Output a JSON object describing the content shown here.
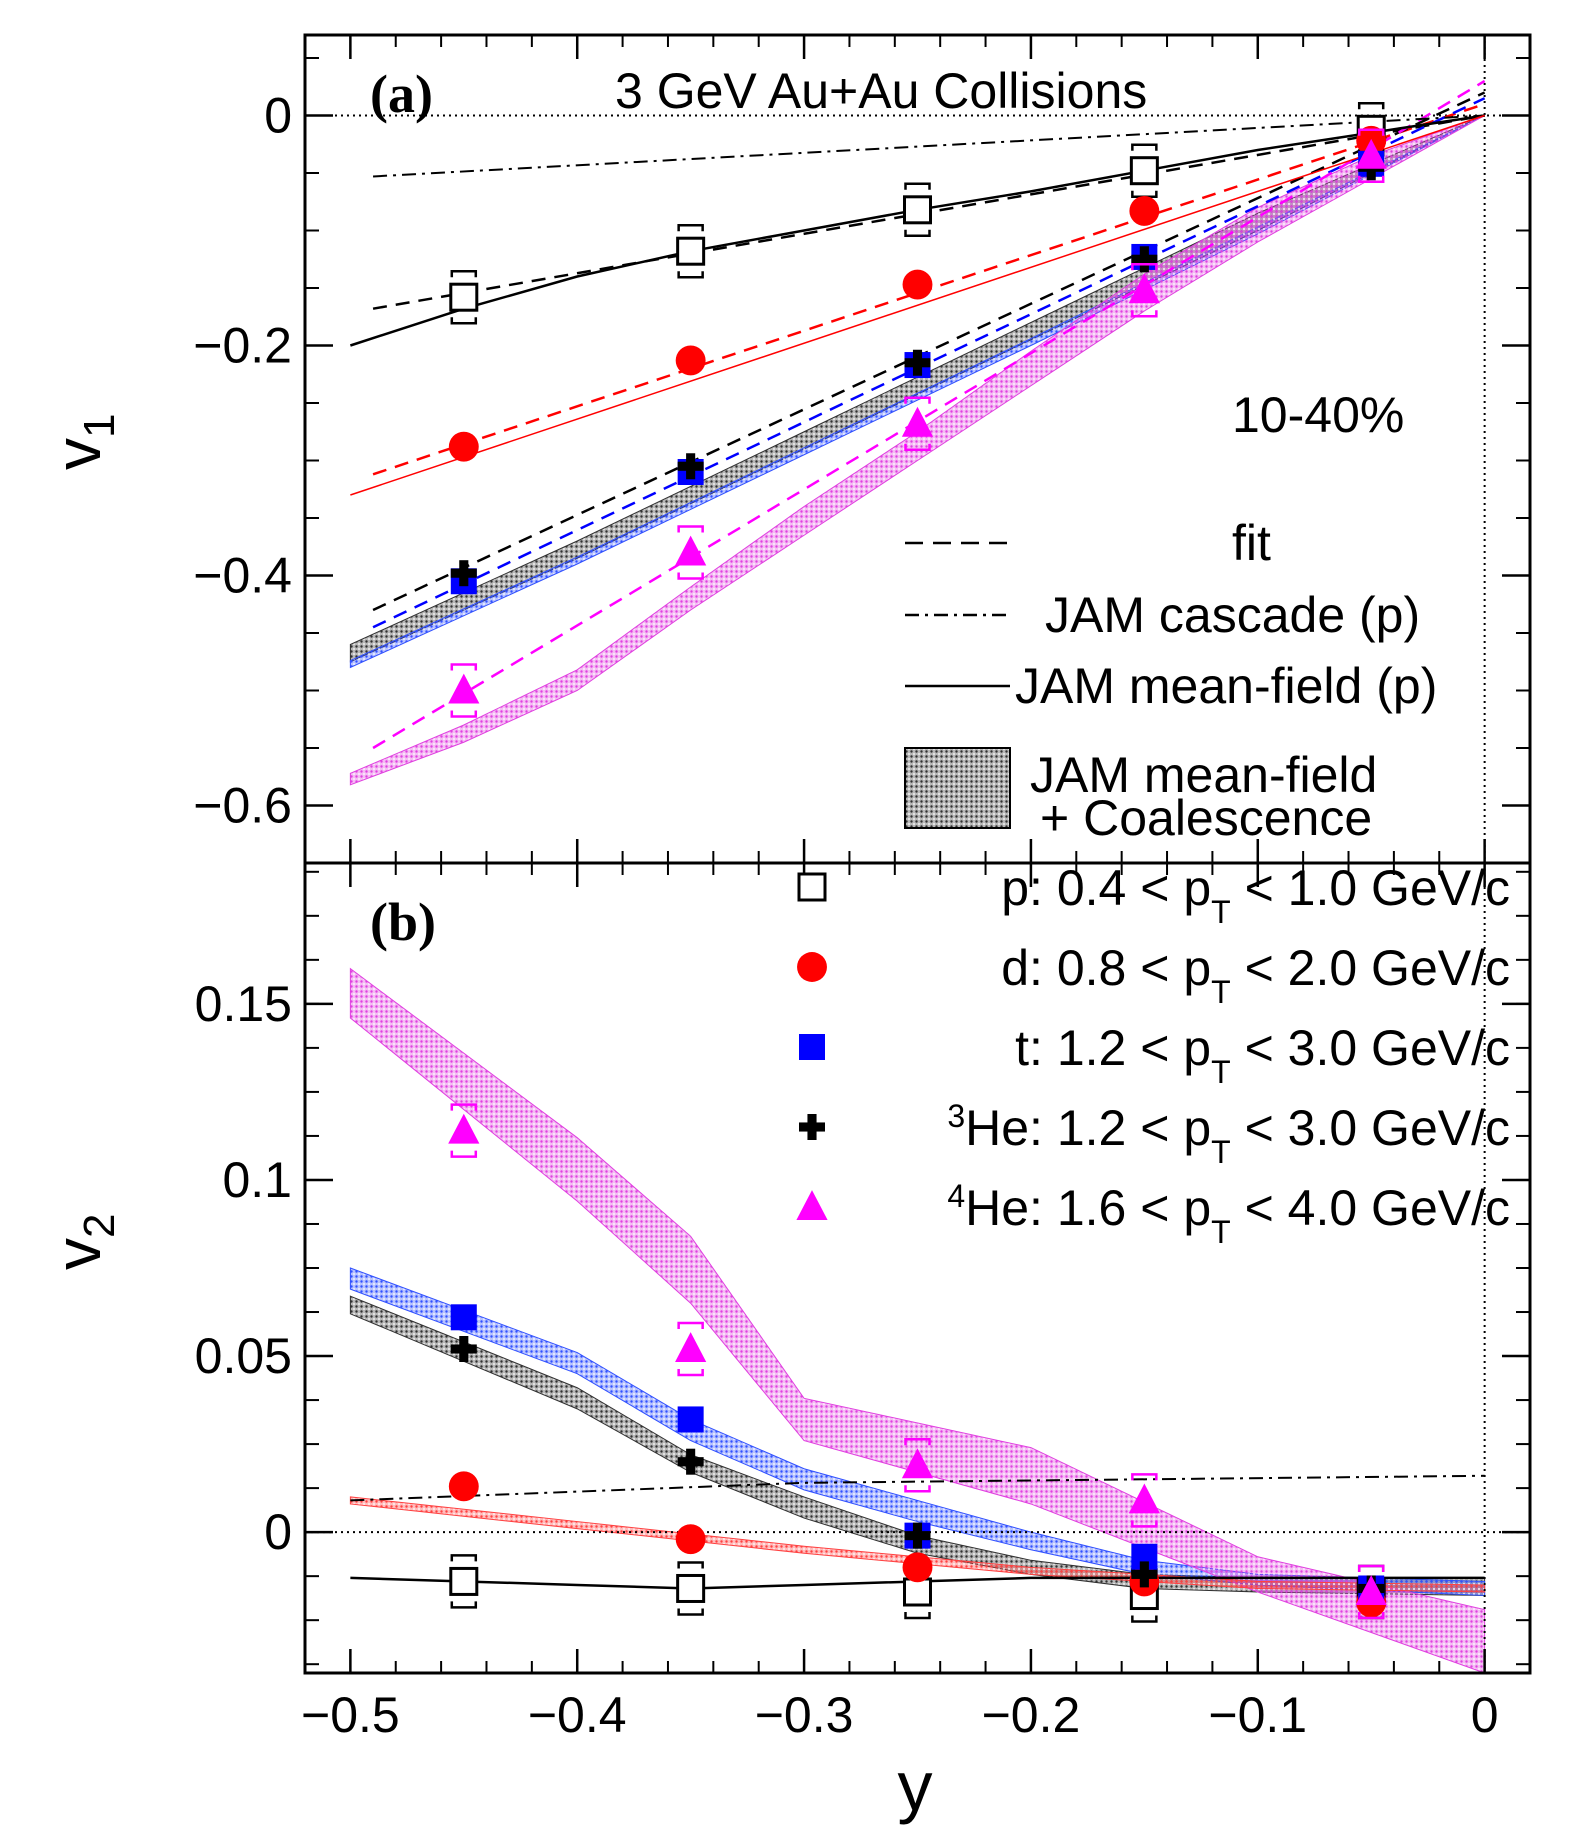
{
  "chart_data": [
    {
      "type": "scatter",
      "panel_label": "(a)",
      "title": "3 GeV Au+Au Collisions",
      "annotation": "10-40%",
      "ylabel": "v",
      "ylabel_sub": "1",
      "xlim": [
        -0.52,
        0.02
      ],
      "ylim": [
        -0.65,
        0.07
      ],
      "yticks": [
        0,
        -0.2,
        -0.4,
        -0.6
      ],
      "ytick_labels": [
        "0",
        "−0.2",
        "−0.4",
        "−0.6"
      ],
      "grid": false,
      "legend_position": "bottom-right",
      "legend": [
        {
          "style": "dashed",
          "label": "fit"
        },
        {
          "style": "dashdot",
          "label": "JAM cascade (p)"
        },
        {
          "style": "solid",
          "label": "JAM mean-field (p)"
        },
        {
          "style": "band",
          "label": "JAM mean-field",
          "label2": "+ Coalescence"
        }
      ],
      "series": [
        {
          "id": "p",
          "color": "#000000",
          "marker": "open-square",
          "x": [
            -0.45,
            -0.35,
            -0.25,
            -0.15,
            -0.05
          ],
          "y": [
            -0.158,
            -0.118,
            -0.082,
            -0.048,
            -0.012
          ]
        },
        {
          "id": "d",
          "color": "#ff0000",
          "marker": "circle",
          "x": [
            -0.45,
            -0.35,
            -0.25,
            -0.15,
            -0.05
          ],
          "y": [
            -0.288,
            -0.213,
            -0.147,
            -0.083,
            -0.022
          ]
        },
        {
          "id": "t",
          "color": "#0000ff",
          "marker": "square",
          "x": [
            -0.45,
            -0.35,
            -0.25,
            -0.15,
            -0.05
          ],
          "y": [
            -0.405,
            -0.31,
            -0.217,
            -0.123,
            -0.042
          ]
        },
        {
          "id": "3He",
          "color": "#000000",
          "marker": "cross",
          "x": [
            -0.45,
            -0.35,
            -0.25,
            -0.15,
            -0.05
          ],
          "y": [
            -0.398,
            -0.305,
            -0.215,
            -0.125,
            -0.045
          ]
        },
        {
          "id": "4He",
          "color": "#ff00ff",
          "marker": "triangle",
          "x": [
            -0.45,
            -0.35,
            -0.25,
            -0.15,
            -0.05
          ],
          "y": [
            -0.5,
            -0.38,
            -0.268,
            -0.152,
            -0.035
          ]
        }
      ],
      "fits": [
        {
          "color": "#000000",
          "x": [
            -0.49,
            -0.0
          ],
          "y": [
            -0.168,
            0.0
          ]
        },
        {
          "color": "#ff0000",
          "x": [
            -0.49,
            0.0
          ],
          "y": [
            -0.312,
            0.01
          ]
        },
        {
          "color": "#0000ff",
          "x": [
            -0.49,
            0.0
          ],
          "y": [
            -0.445,
            0.015
          ]
        },
        {
          "color": "#000000",
          "x": [
            -0.49,
            0.0
          ],
          "y": [
            -0.43,
            0.02
          ]
        },
        {
          "color": "#ff00ff",
          "x": [
            -0.49,
            0.0
          ],
          "y": [
            -0.55,
            0.03
          ]
        }
      ],
      "jam_cascade": {
        "x": [
          -0.49,
          0.0
        ],
        "y": [
          -0.053,
          0.0
        ]
      },
      "jam_meanfield": {
        "x": [
          -0.5,
          -0.45,
          -0.4,
          -0.35,
          -0.3,
          -0.25,
          -0.2,
          -0.15,
          -0.1,
          -0.05,
          0.0
        ],
        "y": [
          -0.2,
          -0.168,
          -0.14,
          -0.118,
          -0.1,
          -0.082,
          -0.066,
          -0.048,
          -0.03,
          -0.015,
          0.0
        ]
      },
      "jam_meanfield_d": {
        "x": [
          -0.5,
          0.0
        ],
        "y": [
          -0.33,
          0.0
        ]
      },
      "bands": [
        {
          "color": "#303030",
          "x": [
            -0.5,
            -0.4,
            -0.3,
            -0.2,
            -0.1,
            0.0
          ],
          "ylo": [
            -0.475,
            -0.385,
            -0.29,
            -0.195,
            -0.1,
            0.0
          ],
          "yhi": [
            -0.46,
            -0.37,
            -0.275,
            -0.18,
            -0.085,
            0.0
          ]
        },
        {
          "color": "#3050ff",
          "x": [
            -0.5,
            -0.4,
            -0.3,
            -0.2,
            -0.1,
            0.0
          ],
          "ylo": [
            -0.48,
            -0.39,
            -0.295,
            -0.2,
            -0.103,
            0.0
          ],
          "yhi": [
            -0.474,
            -0.384,
            -0.289,
            -0.194,
            -0.097,
            0.0
          ]
        },
        {
          "color": "#e040e0",
          "x": [
            -0.5,
            -0.45,
            -0.4,
            -0.35,
            -0.3,
            -0.25,
            -0.2,
            -0.15,
            -0.1,
            -0.05,
            0.0
          ],
          "ylo": [
            -0.582,
            -0.545,
            -0.5,
            -0.43,
            -0.365,
            -0.3,
            -0.235,
            -0.17,
            -0.11,
            -0.055,
            0.0
          ],
          "yhi": [
            -0.572,
            -0.53,
            -0.482,
            -0.41,
            -0.34,
            -0.275,
            -0.205,
            -0.138,
            -0.08,
            -0.035,
            0.0
          ]
        }
      ]
    },
    {
      "type": "scatter",
      "panel_label": "(b)",
      "ylabel": "v",
      "ylabel_sub": "2",
      "xlabel": "y",
      "xlim": [
        -0.52,
        0.02
      ],
      "ylim": [
        -0.04,
        0.19
      ],
      "yticks": [
        0.15,
        0.1,
        0.05,
        0
      ],
      "ytick_labels": [
        "0.15",
        "0.1",
        "0.05",
        "0"
      ],
      "xticks": [
        -0.5,
        -0.4,
        -0.3,
        -0.2,
        -0.1,
        0
      ],
      "xtick_labels": [
        "−0.5",
        "−0.4",
        "−0.3",
        "−0.2",
        "−0.1",
        "0"
      ],
      "grid": false,
      "legend_position": "top-right",
      "legend": [
        {
          "marker": "open-square",
          "color": "#000000",
          "pre": "",
          "sup": "",
          "label": "p: 0.4 < p",
          "sub": "T",
          "post": " < 1.0 GeV/c"
        },
        {
          "marker": "circle",
          "color": "#ff0000",
          "pre": "",
          "sup": "",
          "label": "d: 0.8 < p",
          "sub": "T",
          "post": " < 2.0 GeV/c"
        },
        {
          "marker": "square",
          "color": "#0000ff",
          "pre": "",
          "sup": "",
          "label": "t: 1.2 < p",
          "sub": "T",
          "post": " < 3.0 GeV/c"
        },
        {
          "marker": "cross",
          "color": "#000000",
          "pre": "",
          "sup": "3",
          "label": "He: 1.2 < p",
          "sub": "T",
          "post": " < 3.0 GeV/c"
        },
        {
          "marker": "triangle",
          "color": "#ff00ff",
          "pre": "",
          "sup": "4",
          "label": "He: 1.6 < p",
          "sub": "T",
          "post": " < 4.0 GeV/c"
        }
      ],
      "series": [
        {
          "id": "p",
          "color": "#000000",
          "marker": "open-square",
          "x": [
            -0.45,
            -0.35,
            -0.25,
            -0.15,
            -0.05
          ],
          "y": [
            -0.014,
            -0.016,
            -0.017,
            -0.018,
            -0.017
          ]
        },
        {
          "id": "d",
          "color": "#ff0000",
          "marker": "circle",
          "x": [
            -0.45,
            -0.35,
            -0.25,
            -0.15,
            -0.05
          ],
          "y": [
            0.013,
            -0.002,
            -0.01,
            -0.014,
            -0.02
          ]
        },
        {
          "id": "t",
          "color": "#0000ff",
          "marker": "square",
          "x": [
            -0.45,
            -0.35,
            -0.25,
            -0.15,
            -0.05
          ],
          "y": [
            0.061,
            0.032,
            -0.001,
            -0.007,
            -0.016
          ]
        },
        {
          "id": "3He",
          "color": "#000000",
          "marker": "cross",
          "x": [
            -0.45,
            -0.35,
            -0.25,
            -0.15,
            -0.05
          ],
          "y": [
            0.052,
            0.02,
            -0.001,
            -0.012,
            -0.016
          ]
        },
        {
          "id": "4He",
          "color": "#ff00ff",
          "marker": "triangle",
          "x": [
            -0.45,
            -0.35,
            -0.25,
            -0.15,
            -0.05
          ],
          "y": [
            0.114,
            0.052,
            0.019,
            0.009,
            -0.017
          ]
        }
      ],
      "jam_cascade": {
        "x": [
          -0.5,
          -0.3,
          0.0
        ],
        "y": [
          0.009,
          0.014,
          0.016
        ]
      },
      "jam_meanfield": {
        "x": [
          -0.5,
          -0.4,
          -0.35,
          -0.3,
          -0.2,
          -0.1,
          0.0
        ],
        "y": [
          -0.013,
          -0.015,
          -0.016,
          -0.015,
          -0.013,
          -0.013,
          -0.013
        ]
      },
      "bands": [
        {
          "color": "#303030",
          "x": [
            -0.5,
            -0.4,
            -0.35,
            -0.3,
            -0.25,
            -0.2,
            -0.15,
            -0.1,
            0.0
          ],
          "ylo": [
            0.062,
            0.035,
            0.017,
            0.004,
            -0.006,
            -0.012,
            -0.016,
            -0.017,
            -0.018
          ],
          "yhi": [
            0.067,
            0.041,
            0.022,
            0.01,
            -0.001,
            -0.008,
            -0.012,
            -0.013,
            -0.013
          ]
        },
        {
          "color": "#3050ff",
          "x": [
            -0.5,
            -0.4,
            -0.35,
            -0.3,
            -0.25,
            -0.2,
            -0.15,
            -0.1,
            0.0
          ],
          "ylo": [
            0.069,
            0.045,
            0.026,
            0.012,
            0.003,
            -0.005,
            -0.012,
            -0.015,
            -0.018
          ],
          "yhi": [
            0.075,
            0.051,
            0.032,
            0.018,
            0.009,
            0.0,
            -0.008,
            -0.012,
            -0.014
          ]
        },
        {
          "color": "#e040e0",
          "x": [
            -0.5,
            -0.4,
            -0.35,
            -0.3,
            -0.2,
            -0.1,
            0.0
          ],
          "ylo": [
            0.146,
            0.094,
            0.065,
            0.026,
            0.008,
            -0.017,
            -0.04
          ],
          "yhi": [
            0.16,
            0.112,
            0.084,
            0.038,
            0.024,
            -0.007,
            -0.022
          ]
        },
        {
          "color": "#ff4040",
          "x": [
            -0.5,
            -0.4,
            -0.3,
            -0.2,
            -0.1,
            0.0
          ],
          "ylo": [
            0.008,
            0.001,
            -0.006,
            -0.012,
            -0.016,
            -0.017
          ],
          "yhi": [
            0.01,
            0.003,
            -0.004,
            -0.01,
            -0.014,
            -0.015
          ]
        }
      ]
    }
  ]
}
